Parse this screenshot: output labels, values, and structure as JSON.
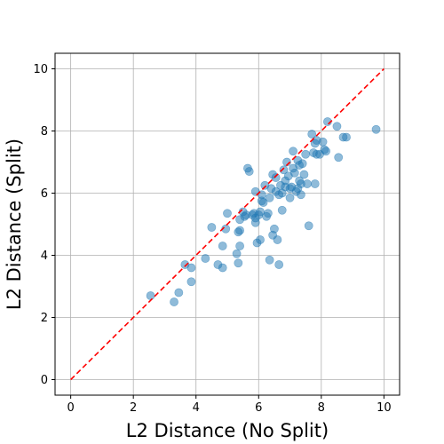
{
  "chart_data": {
    "type": "scatter",
    "title": "",
    "xlabel": "L2 Distance (No Split)",
    "ylabel": "L2 Distance (Split)",
    "xlim": [
      -0.5,
      10.5
    ],
    "ylim": [
      -0.5,
      10.5
    ],
    "xticks": [
      0,
      2,
      4,
      6,
      8,
      10
    ],
    "yticks": [
      0,
      2,
      4,
      6,
      8,
      10
    ],
    "xtick_labels": [
      "0",
      "2",
      "4",
      "6",
      "8",
      "10"
    ],
    "ytick_labels": [
      "0",
      "2",
      "4",
      "6",
      "8",
      "10"
    ],
    "grid": true,
    "colors": {
      "points": "#1f77b4",
      "reference_line": "#ff0000",
      "grid": "#b0b0b0"
    },
    "reference_line": {
      "x": [
        0,
        10
      ],
      "y": [
        0,
        10
      ],
      "style": "dashed"
    },
    "series": [
      {
        "points": [
          [
            2.55,
            2.7
          ],
          [
            3.3,
            2.5
          ],
          [
            3.45,
            2.8
          ],
          [
            3.65,
            3.7
          ],
          [
            3.85,
            3.15
          ],
          [
            3.85,
            3.6
          ],
          [
            4.3,
            3.9
          ],
          [
            4.5,
            4.9
          ],
          [
            4.7,
            3.7
          ],
          [
            4.85,
            3.6
          ],
          [
            4.85,
            4.3
          ],
          [
            4.95,
            4.85
          ],
          [
            5.0,
            5.35
          ],
          [
            5.3,
            4.05
          ],
          [
            5.35,
            3.75
          ],
          [
            5.35,
            4.75
          ],
          [
            5.4,
            4.3
          ],
          [
            5.4,
            4.8
          ],
          [
            5.4,
            5.15
          ],
          [
            5.5,
            5.4
          ],
          [
            5.55,
            5.25
          ],
          [
            5.6,
            5.3
          ],
          [
            5.65,
            6.8
          ],
          [
            5.7,
            6.7
          ],
          [
            5.8,
            5.3
          ],
          [
            5.85,
            5.35
          ],
          [
            5.9,
            6.05
          ],
          [
            5.9,
            5.2
          ],
          [
            5.9,
            5.05
          ],
          [
            5.95,
            4.4
          ],
          [
            6.0,
            5.3
          ],
          [
            6.05,
            4.5
          ],
          [
            6.05,
            5.4
          ],
          [
            6.1,
            5.75
          ],
          [
            6.1,
            5.95
          ],
          [
            6.15,
            5.7
          ],
          [
            6.2,
            6.25
          ],
          [
            6.25,
            5.25
          ],
          [
            6.3,
            5.35
          ],
          [
            6.35,
            3.85
          ],
          [
            6.35,
            5.85
          ],
          [
            6.4,
            6.15
          ],
          [
            6.45,
            4.65
          ],
          [
            6.45,
            6.6
          ],
          [
            6.5,
            4.85
          ],
          [
            6.55,
            6.05
          ],
          [
            6.55,
            6.5
          ],
          [
            6.6,
            4.5
          ],
          [
            6.65,
            3.7
          ],
          [
            6.65,
            5.95
          ],
          [
            6.7,
            6.25
          ],
          [
            6.75,
            5.45
          ],
          [
            6.75,
            6.0
          ],
          [
            6.8,
            6.75
          ],
          [
            6.85,
            6.2
          ],
          [
            6.85,
            6.4
          ],
          [
            6.9,
            7.0
          ],
          [
            6.95,
            6.55
          ],
          [
            7.0,
            5.85
          ],
          [
            7.0,
            6.15
          ],
          [
            7.05,
            6.2
          ],
          [
            7.1,
            7.35
          ],
          [
            7.1,
            6.8
          ],
          [
            7.15,
            6.65
          ],
          [
            7.2,
            6.05
          ],
          [
            7.25,
            6.15
          ],
          [
            7.25,
            7.05
          ],
          [
            7.3,
            6.4
          ],
          [
            7.3,
            6.9
          ],
          [
            7.35,
            5.95
          ],
          [
            7.35,
            6.3
          ],
          [
            7.4,
            6.95
          ],
          [
            7.45,
            6.6
          ],
          [
            7.5,
            7.25
          ],
          [
            7.55,
            6.3
          ],
          [
            7.6,
            4.95
          ],
          [
            7.7,
            7.9
          ],
          [
            7.75,
            7.3
          ],
          [
            7.8,
            7.6
          ],
          [
            7.8,
            6.3
          ],
          [
            7.85,
            7.25
          ],
          [
            7.85,
            7.7
          ],
          [
            7.95,
            7.25
          ],
          [
            8.05,
            7.65
          ],
          [
            8.1,
            7.4
          ],
          [
            8.15,
            7.35
          ],
          [
            8.2,
            8.3
          ],
          [
            8.5,
            8.15
          ],
          [
            8.55,
            7.15
          ],
          [
            8.7,
            7.8
          ],
          [
            8.8,
            7.8
          ],
          [
            9.75,
            8.05
          ]
        ]
      }
    ]
  }
}
